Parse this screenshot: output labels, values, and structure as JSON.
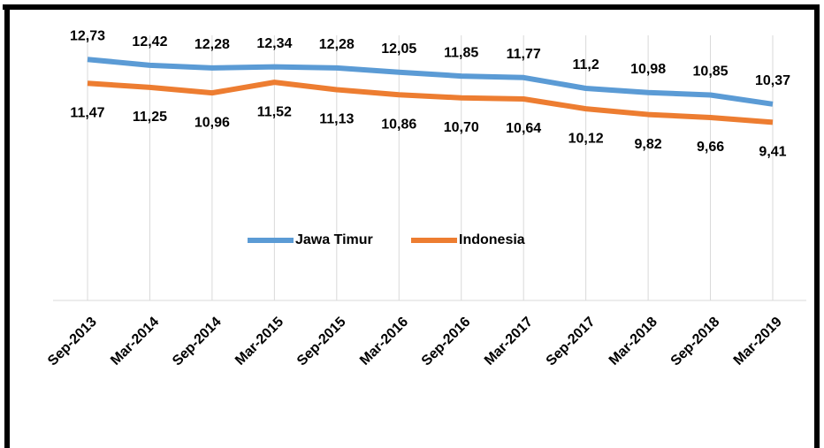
{
  "chart_data": {
    "type": "line",
    "categories": [
      "Sep-2013",
      "Mar-2014",
      "Sep-2014",
      "Mar-2015",
      "Sep-2015",
      "Mar-2016",
      "Sep-2016",
      "Mar-2017",
      "Sep-2017",
      "Mar-2018",
      "Sep-2018",
      "Mar-2019"
    ],
    "series": [
      {
        "name": "Jawa Timur",
        "color": "#5b9bd5",
        "values": [
          12.73,
          12.42,
          12.28,
          12.34,
          12.28,
          12.05,
          11.85,
          11.77,
          11.2,
          10.98,
          10.85,
          10.37
        ],
        "value_labels": [
          "12,73",
          "12,42",
          "12,28",
          "12,34",
          "12,28",
          "12,05",
          "11,85",
          "11,77",
          "11,2",
          "10,98",
          "10,85",
          "10,37"
        ]
      },
      {
        "name": "Indonesia",
        "color": "#ed7d31",
        "values": [
          11.47,
          11.25,
          10.96,
          11.52,
          11.13,
          10.86,
          10.7,
          10.64,
          10.12,
          9.82,
          9.66,
          9.41
        ],
        "value_labels": [
          "11,47",
          "11,25",
          "10,96",
          "11,52",
          "11,13",
          "10,86",
          "10,70",
          "10,64",
          "10,12",
          "9,82",
          "9,66",
          "9,41"
        ]
      }
    ],
    "ylim": [
      0,
      14
    ],
    "grid": true,
    "legend": "center"
  }
}
